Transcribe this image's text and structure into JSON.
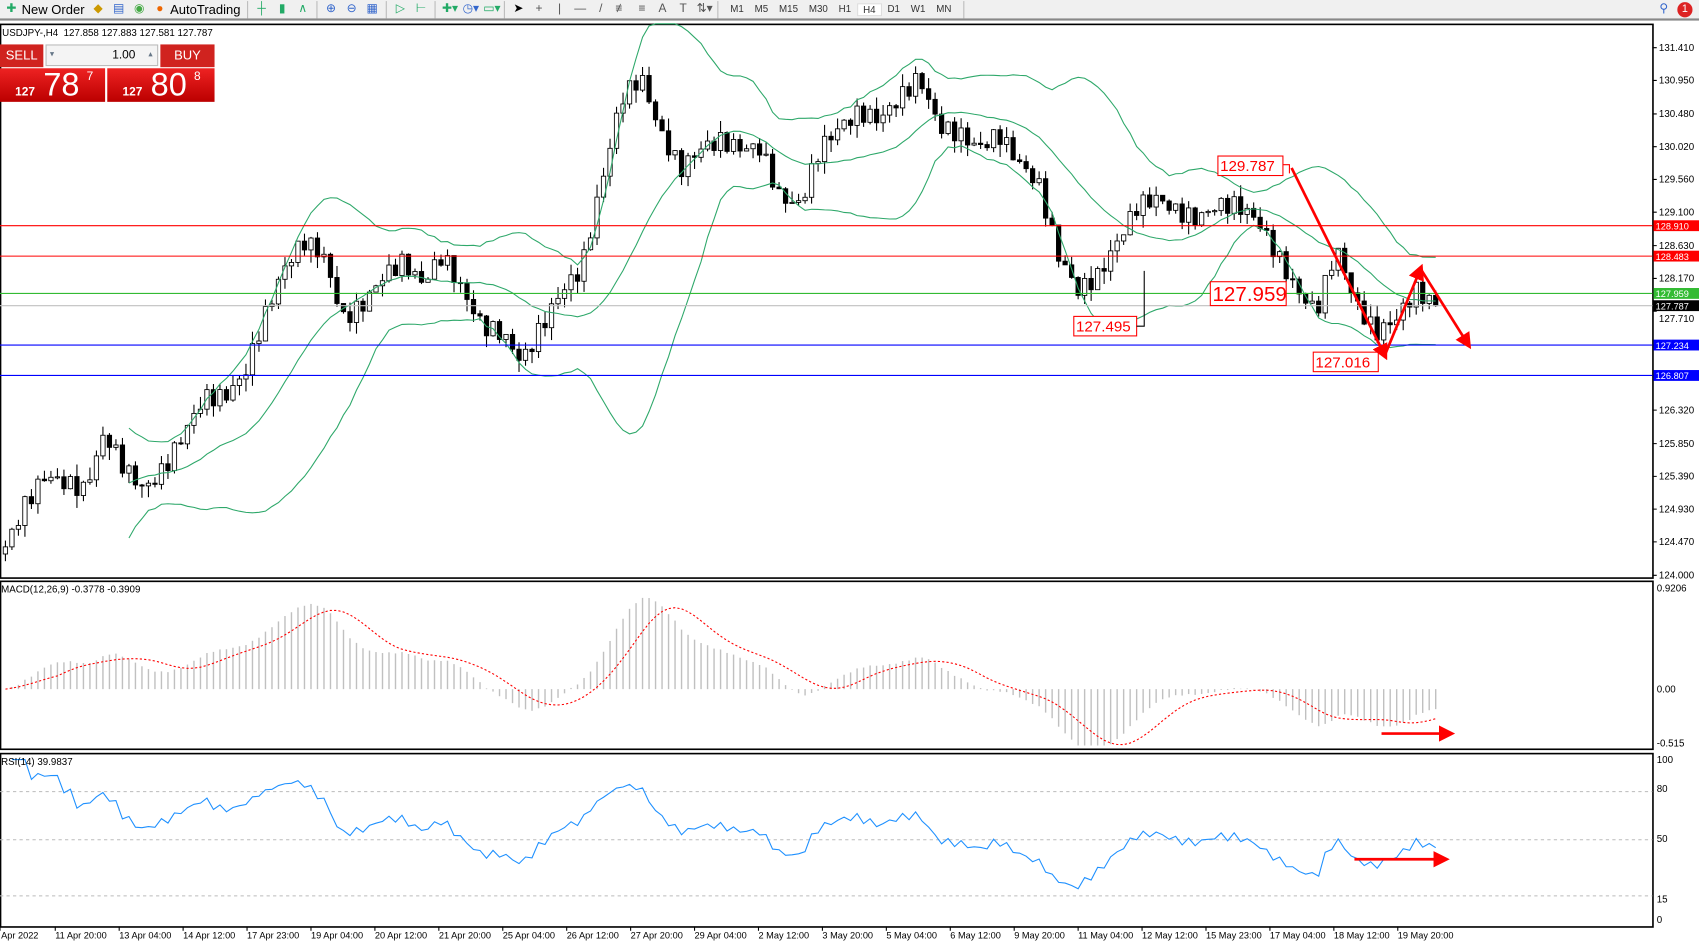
{
  "toolbar": {
    "new_order": "New Order",
    "autotrading": "AutoTrading",
    "timeframes": [
      "M1",
      "M5",
      "M15",
      "M30",
      "H1",
      "H4",
      "D1",
      "W1",
      "MN"
    ],
    "active_timeframe": "H4",
    "notification_count": "1"
  },
  "chart_header": {
    "symbol": "USDJPY-,H4",
    "ohlc": "127.858 127.883 127.581 127.787"
  },
  "one_click": {
    "sell_label": "SELL",
    "buy_label": "BUY",
    "volume": "1.00",
    "sell_prefix": "127",
    "sell_main": "78",
    "sell_suffix": "7",
    "buy_prefix": "127",
    "buy_main": "80",
    "buy_suffix": "8"
  },
  "price_axis": [
    "131.410",
    "130.950",
    "130.480",
    "130.020",
    "129.560",
    "129.100",
    "128.630",
    "128.170",
    "127.710",
    "126.320",
    "125.850",
    "125.390",
    "124.930",
    "124.470",
    "124.000"
  ],
  "levels": [
    {
      "price": 128.91,
      "label": "128.910",
      "color": "#ff0000"
    },
    {
      "price": 128.483,
      "label": "128.483",
      "color": "#ff0000"
    },
    {
      "price": 127.959,
      "label": "127.959",
      "color": "#33bb33"
    },
    {
      "price": 127.787,
      "label": "127.787",
      "color": "#000000",
      "line": "#c0c0c0"
    },
    {
      "price": 127.234,
      "label": "127.234",
      "color": "#0000ff"
    },
    {
      "price": 126.807,
      "label": "126.807",
      "color": "#0000ff"
    }
  ],
  "annotations": [
    "129.787",
    "127.959",
    "127.495",
    "127.016"
  ],
  "macd": {
    "label": "MACD(12,26,9) -0.3778 -0.3909",
    "axis": [
      "0.9206",
      "0.00",
      "-0.515"
    ]
  },
  "rsi": {
    "label": "RSI(14) 39.9837",
    "axis": [
      "100",
      "80",
      "50",
      "15",
      "0"
    ]
  },
  "time_axis": [
    "Apr 2022",
    "11 Apr 20:00",
    "13 Apr 04:00",
    "14 Apr 12:00",
    "17 Apr 23:00",
    "19 Apr 04:00",
    "20 Apr 12:00",
    "21 Apr 20:00",
    "25 Apr 04:00",
    "26 Apr 12:00",
    "27 Apr 20:00",
    "29 Apr 04:00",
    "2 May 12:00",
    "3 May 20:00",
    "5 May 04:00",
    "6 May 12:00",
    "9 May 20:00",
    "11 May 04:00",
    "12 May 12:00",
    "15 May 23:00",
    "17 May 04:00",
    "18 May 12:00",
    "19 May 20:00"
  ],
  "colors": {
    "bands": "#2ea86a",
    "macd_signal": "#ff0000",
    "macd_hist": "#c0c0c0",
    "rsi": "#1e90ff",
    "arrows": "#ff0000"
  },
  "chart_data": {
    "type": "candlestick",
    "indicators": [
      "Bollinger Bands",
      "MACD(12,26,9)",
      "RSI(14)"
    ],
    "approx_close": [
      124.4,
      125.0,
      125.4,
      125.3,
      125.2,
      126.0,
      125.5,
      125.2,
      125.5,
      126.0,
      126.5,
      126.5,
      126.8,
      127.6,
      128.3,
      128.7,
      128.5,
      127.6,
      127.8,
      128.2,
      128.4,
      128.1,
      128.5,
      128.0,
      127.5,
      127.4,
      127.0,
      127.5,
      128.0,
      128.3,
      129.5,
      130.7,
      131.0,
      130.2,
      129.7,
      130.0,
      130.1,
      130.0,
      130.0,
      129.3,
      129.2,
      130.0,
      130.3,
      130.5,
      130.4,
      130.7,
      131.0,
      130.3,
      130.2,
      130.0,
      130.2,
      129.8,
      129.5,
      128.5,
      128.0,
      128.2,
      128.7,
      129.2,
      129.3,
      129.1,
      129.0,
      129.2,
      129.2,
      129.0,
      128.5,
      128.0,
      127.7,
      128.6,
      127.8,
      127.4,
      127.6,
      128.0,
      127.787
    ]
  }
}
